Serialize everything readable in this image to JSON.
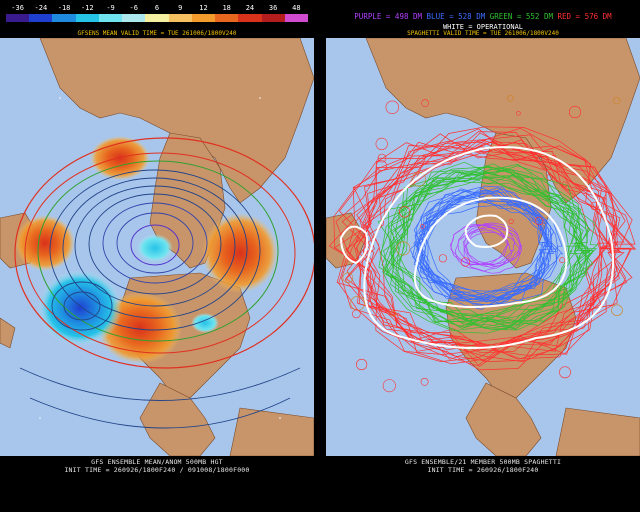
{
  "left": {
    "scale": {
      "values": [
        "-36",
        "-24",
        "-18",
        "-12",
        "-9",
        "-6",
        "6",
        "9",
        "12",
        "18",
        "24",
        "36",
        "48"
      ],
      "colors": [
        "#3a1b8e",
        "#1f3fd0",
        "#1e8be0",
        "#25c3e8",
        "#6fe4f0",
        "#aee8ef",
        "#f5f0a0",
        "#f5c160",
        "#f29a2c",
        "#e8661e",
        "#d9321b",
        "#b41d1d",
        "#d14bd0"
      ]
    },
    "valid_label": "GFSENS MEAN VALID TIME = TUE 261006/1800V240",
    "footer_line1": "GFS ENSEMBLE MEAN/ANOM 500MB HGT",
    "footer_line2": "INIT TIME = 260926/1800F240 / 091008/1800F000"
  },
  "right": {
    "legend": {
      "purple_label": "PURPLE = 498 DM",
      "blue_label": "BLUE = 528 DM",
      "green_label": "GREEN = 552 DM",
      "red_label": "RED = 576 DM",
      "white_label": "WHITE = OPERATIONAL",
      "colors": {
        "purple": "#b040ff",
        "blue": "#3a6cff",
        "green": "#30c030",
        "red": "#ff3030",
        "white": "#ffffff"
      }
    },
    "valid_label": "SPAGHETTI VALID TIME = TUE 261006/1800V240",
    "footer_line1": "GFS ENSEMBLE/21 MEMBER 500MB SPAGHETTI",
    "footer_line2": "INIT TIME = 260926/1800F240"
  }
}
